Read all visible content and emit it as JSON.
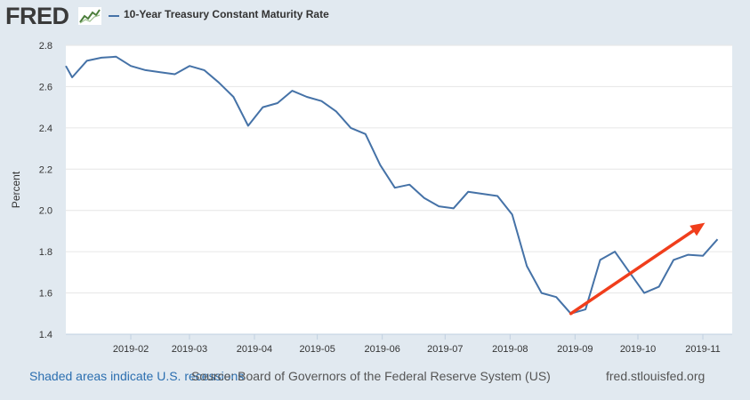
{
  "header": {
    "logo_text": "FRED",
    "logo_icon": "chart-line-icon",
    "legend_label": "10-Year Treasury Constant Maturity Rate"
  },
  "footer": {
    "recession_note": "Shaded areas indicate U.S. recessions",
    "source": "Source: Board of Governors of the Federal Reserve System (US)",
    "site": "fred.stlouisfed.org"
  },
  "colors": {
    "page_background": "#e1e9f0",
    "plot_background": "#ffffff",
    "series": "#4572a7",
    "annotation_arrow": "#f03e1c",
    "link": "#2c6fb0"
  },
  "chart_data": {
    "type": "line",
    "title": "10-Year Treasury Constant Maturity Rate",
    "ylabel": "Percent",
    "xlabel": "",
    "ylim": [
      1.4,
      2.8
    ],
    "yticks": [
      1.4,
      1.6,
      1.8,
      2.0,
      2.2,
      2.4,
      2.6,
      2.8
    ],
    "ytick_labels": [
      "1.4",
      "1.6",
      "1.8",
      "2.0",
      "2.2",
      "2.4",
      "2.6",
      "2.8"
    ],
    "xlim": [
      "2019-01-01",
      "2019-11-15"
    ],
    "xticks": [
      "2019-02-01",
      "2019-03-01",
      "2019-04-01",
      "2019-05-01",
      "2019-06-01",
      "2019-07-01",
      "2019-08-01",
      "2019-09-01",
      "2019-10-01",
      "2019-11-01"
    ],
    "xtick_labels": [
      "2019-02",
      "2019-03",
      "2019-04",
      "2019-05",
      "2019-06",
      "2019-07",
      "2019-08",
      "2019-09",
      "2019-10",
      "2019-11"
    ],
    "grid": "horizontal",
    "legend": "top-left",
    "series": [
      {
        "name": "10-Year Treasury Constant Maturity Rate",
        "x": [
          "2019-01-01",
          "2019-01-04",
          "2019-01-11",
          "2019-01-18",
          "2019-01-25",
          "2019-02-01",
          "2019-02-08",
          "2019-02-15",
          "2019-02-22",
          "2019-03-01",
          "2019-03-08",
          "2019-03-15",
          "2019-03-22",
          "2019-03-29",
          "2019-04-05",
          "2019-04-12",
          "2019-04-19",
          "2019-04-26",
          "2019-05-03",
          "2019-05-10",
          "2019-05-17",
          "2019-05-24",
          "2019-05-31",
          "2019-06-07",
          "2019-06-14",
          "2019-06-21",
          "2019-06-28",
          "2019-07-05",
          "2019-07-12",
          "2019-07-19",
          "2019-07-26",
          "2019-08-02",
          "2019-08-09",
          "2019-08-16",
          "2019-08-23",
          "2019-08-30",
          "2019-09-06",
          "2019-09-13",
          "2019-09-20",
          "2019-09-27",
          "2019-10-04",
          "2019-10-11",
          "2019-10-18",
          "2019-10-25",
          "2019-11-01",
          "2019-11-08"
        ],
        "values": [
          2.7,
          2.645,
          2.725,
          2.74,
          2.745,
          2.7,
          2.68,
          2.67,
          2.66,
          2.7,
          2.68,
          2.62,
          2.55,
          2.41,
          2.5,
          2.52,
          2.58,
          2.55,
          2.53,
          2.48,
          2.4,
          2.37,
          2.22,
          2.11,
          2.125,
          2.06,
          2.02,
          2.01,
          2.09,
          2.08,
          2.07,
          1.98,
          1.73,
          1.6,
          1.58,
          1.5,
          1.52,
          1.76,
          1.8,
          1.7,
          1.6,
          1.63,
          1.76,
          1.785,
          1.78,
          1.86
        ]
      }
    ],
    "annotations": [
      {
        "type": "arrow",
        "color": "#f03e1c",
        "from": [
          "2019-08-30",
          1.5
        ],
        "to": [
          "2019-11-02",
          1.94
        ]
      }
    ]
  }
}
